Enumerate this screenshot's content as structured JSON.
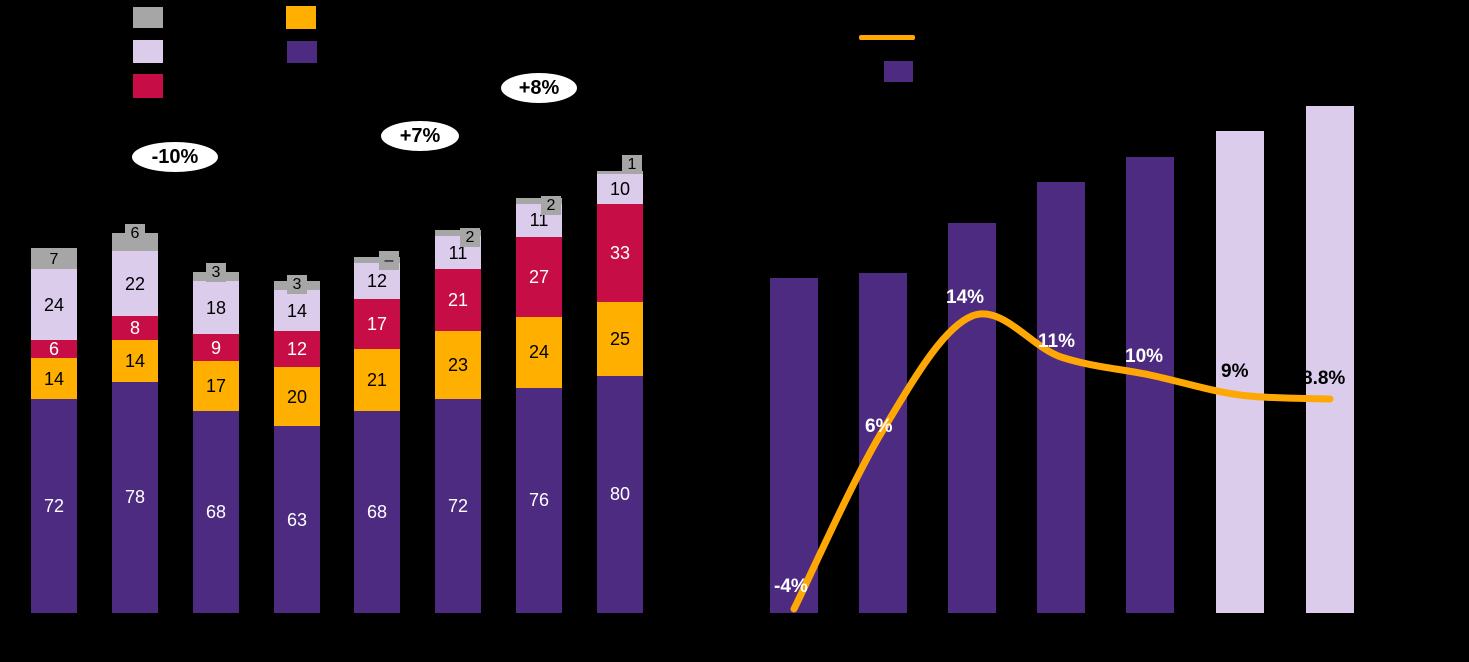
{
  "canvas": {
    "background": "#000000"
  },
  "palette": {
    "purple": "#4D2B81",
    "lavender": "#DBCCEC",
    "crimson": "#C60D45",
    "orange": "#FFAF00",
    "gray": "#A6A6A6",
    "line_orange": "#FFA805",
    "callout_bg": "#FFFFFF",
    "callout_text": "#000000"
  },
  "chart_data": [
    {
      "type": "bar",
      "subtype": "stacked-column",
      "categories": [
        "",
        "",
        "",
        "",
        "",
        "",
        "",
        ""
      ],
      "series": [
        {
          "name": "purple-segment",
          "color_key": "purple",
          "label_color": "#FFFFFF",
          "values": [
            72,
            78,
            68,
            63,
            68,
            72,
            76,
            80
          ]
        },
        {
          "name": "orange-segment",
          "color_key": "orange",
          "label_color": "#000000",
          "values": [
            14,
            14,
            17,
            20,
            21,
            23,
            24,
            25
          ]
        },
        {
          "name": "crimson-segment",
          "color_key": "crimson",
          "label_color": "#FFFFFF",
          "values": [
            6,
            8,
            9,
            12,
            17,
            21,
            27,
            33
          ]
        },
        {
          "name": "lavender-segment",
          "color_key": "lavender",
          "label_color": "#000000",
          "values": [
            24,
            22,
            18,
            14,
            12,
            11,
            11,
            10
          ]
        },
        {
          "name": "gray-segment",
          "color_key": "gray",
          "label_color": "#000000",
          "values": [
            7,
            6,
            3,
            3,
            2,
            2,
            2,
            1
          ],
          "value_labels": [
            "7",
            "6",
            "3",
            "3",
            "–",
            "2",
            "2",
            "1"
          ]
        }
      ],
      "totals": [
        123,
        128,
        115,
        112,
        120,
        129,
        140,
        149
      ],
      "annotations": [
        {
          "text": "-10%"
        },
        {
          "text": "+7%"
        },
        {
          "text": "+8%"
        }
      ],
      "legend_swatches": [
        "gray",
        "lavender",
        "crimson",
        "orange",
        "purple"
      ],
      "grid": false,
      "axis_labels_visible": false
    },
    {
      "type": "bar",
      "overlay": "line",
      "categories": [
        "",
        "",
        "",
        "",
        "",
        "",
        ""
      ],
      "bars": {
        "name": "value-bars",
        "values_estimated_relative": [
          66,
          67,
          77,
          85,
          90,
          95,
          100
        ],
        "color_keys": [
          "purple",
          "purple",
          "purple",
          "purple",
          "purple",
          "lavender",
          "lavender"
        ]
      },
      "line": {
        "name": "growth-line",
        "color_key": "line_orange",
        "values": [
          -4,
          6,
          14,
          11,
          10,
          9,
          8.8
        ],
        "labels": [
          "-4%",
          "6%",
          "14%",
          "11%",
          "10%",
          "9%",
          "8.8%"
        ],
        "label_colors": [
          "#FFFFFF",
          "#FFFFFF",
          "#FFFFFF",
          "#FFFFFF",
          "#FFFFFF",
          "#000000",
          "#000000"
        ]
      },
      "legend_swatches": [
        "line_orange",
        "purple"
      ],
      "grid": false,
      "axis_labels_visible": false
    }
  ]
}
